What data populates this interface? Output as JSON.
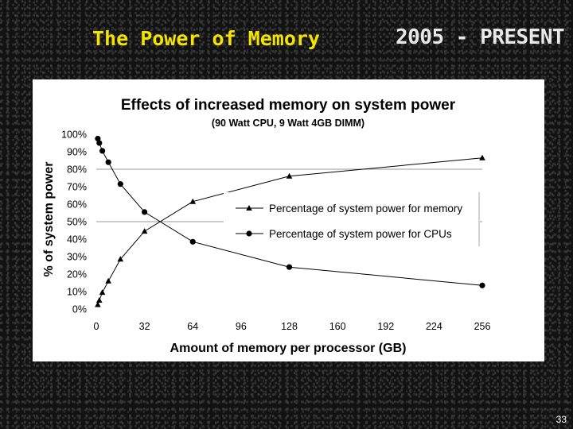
{
  "slide": {
    "title": "The Power of Memory",
    "subtitle": "2005 - PRESENT",
    "page_number": "33"
  },
  "chart_data": {
    "type": "line",
    "title": "Effects of increased memory on system power",
    "subtitle": "(90 Watt CPU, 9 Watt 4GB DIMM)",
    "xlabel": "Amount of memory per processor (GB)",
    "ylabel": "% of system power",
    "xlim": [
      0,
      256
    ],
    "ylim": [
      0,
      100
    ],
    "x_ticks": [
      "0",
      "32",
      "64",
      "96",
      "128",
      "160",
      "192",
      "224",
      "256"
    ],
    "y_ticks": [
      "0%",
      "10%",
      "20%",
      "30%",
      "40%",
      "50%",
      "60%",
      "70%",
      "80%",
      "90%",
      "100%"
    ],
    "gridlines_y": [
      50,
      80
    ],
    "legend_position": "center-right",
    "series": [
      {
        "name": "Percentage of system power for memory",
        "marker": "triangle",
        "color": "#000000",
        "x": [
          1,
          2,
          4,
          8,
          16,
          32,
          64,
          128,
          256
        ],
        "y": [
          2.5,
          5,
          9.5,
          16,
          28.5,
          44.5,
          61.5,
          76,
          86.5
        ]
      },
      {
        "name": "Percentage of system power for CPUs",
        "marker": "circle",
        "color": "#000000",
        "x": [
          1,
          2,
          4,
          8,
          16,
          32,
          64,
          128,
          256
        ],
        "y": [
          97.5,
          95,
          90.5,
          84,
          71.5,
          55.5,
          38.5,
          24,
          13.5
        ]
      }
    ]
  }
}
